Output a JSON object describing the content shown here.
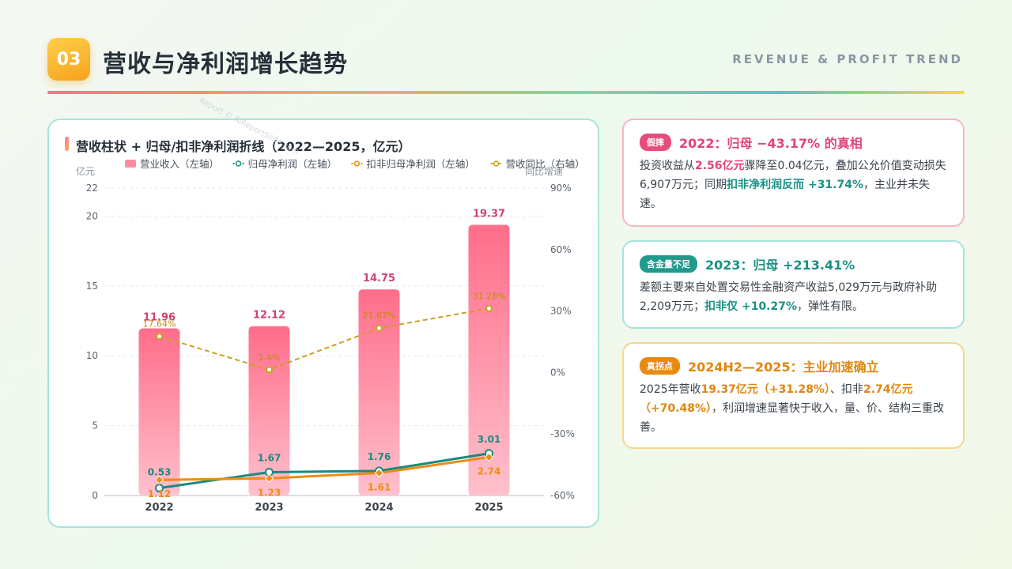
{
  "header": {
    "badge": "03",
    "title": "营收与净利润增长趋势",
    "subtitle_en": "REVENUE & PROFIT TREND"
  },
  "watermark": "Report © AIReportSlide.com",
  "chart_data": {
    "type": "bar",
    "title": "营收柱状 + 归母/扣非净利润折线（2022—2025，亿元）",
    "categories": [
      "2022",
      "2023",
      "2024",
      "2025"
    ],
    "left_axis": {
      "label": "亿元",
      "ticks": [
        0,
        5,
        10,
        15,
        20,
        22
      ],
      "range": [
        0,
        22
      ]
    },
    "right_axis": {
      "label": "同比增速",
      "ticks": [
        "-60%",
        "-30%",
        "0%",
        "30%",
        "60%",
        "90%"
      ],
      "range": [
        -60,
        90
      ]
    },
    "series": [
      {
        "name": "营业收入（左轴）",
        "type": "bar",
        "axis": "left",
        "values": [
          11.96,
          12.12,
          14.75,
          19.37
        ],
        "labels": [
          "11.96",
          "12.12",
          "14.75",
          "19.37"
        ],
        "color": "#ff6d8a"
      },
      {
        "name": "归母净利润（左轴）",
        "type": "line",
        "axis": "left",
        "values": [
          0.53,
          1.67,
          1.76,
          3.01
        ],
        "labels": [
          "0.53",
          "1.67",
          "1.76",
          "3.01"
        ],
        "color": "#1a8a7e"
      },
      {
        "name": "扣非归母净利润（左轴）",
        "type": "line",
        "axis": "left",
        "values": [
          1.12,
          1.23,
          1.61,
          2.74
        ],
        "labels": [
          "1.12",
          "1.23",
          "1.61",
          "2.74"
        ],
        "color": "#ef8c12"
      },
      {
        "name": "营收同比（右轴）",
        "type": "line-dashed",
        "axis": "right",
        "values": [
          17.64,
          1.4,
          21.67,
          31.28
        ],
        "labels": [
          "17.64%",
          "1.4%",
          "21.67%",
          "31.28%"
        ],
        "color": "#c9a21a"
      }
    ]
  },
  "cards": [
    {
      "tag": "假摔",
      "title": "2022：归母 −43.17% 的真相",
      "body": [
        {
          "t": "投资收益从"
        },
        {
          "t": "2.56亿元",
          "c": "hl-pink"
        },
        {
          "t": "骤降至0.04亿元，叠加公允价值变动损失6,907万元；同期"
        },
        {
          "t": "扣非净利润反而 +31.74%",
          "c": "hl-teal"
        },
        {
          "t": "，主业并未失速。"
        }
      ]
    },
    {
      "tag": "含金量不足",
      "title": "2023：归母 +213.41%",
      "body": [
        {
          "t": "差额主要来自处置交易性金融资产收益5,029万元与政府补助2,209万元；"
        },
        {
          "t": "扣非仅 +10.27%",
          "c": "hl-teal"
        },
        {
          "t": "，弹性有限。"
        }
      ]
    },
    {
      "tag": "真拐点",
      "title": "2024H2—2025：主业加速确立",
      "body": [
        {
          "t": "2025年营收"
        },
        {
          "t": "19.37亿元（+31.28%）",
          "c": "hl-gold"
        },
        {
          "t": "、扣非"
        },
        {
          "t": "2.74亿元（+70.48%）",
          "c": "hl-gold"
        },
        {
          "t": "，利润增速显著快于收入，量、价、结构三重改善。"
        }
      ]
    }
  ]
}
